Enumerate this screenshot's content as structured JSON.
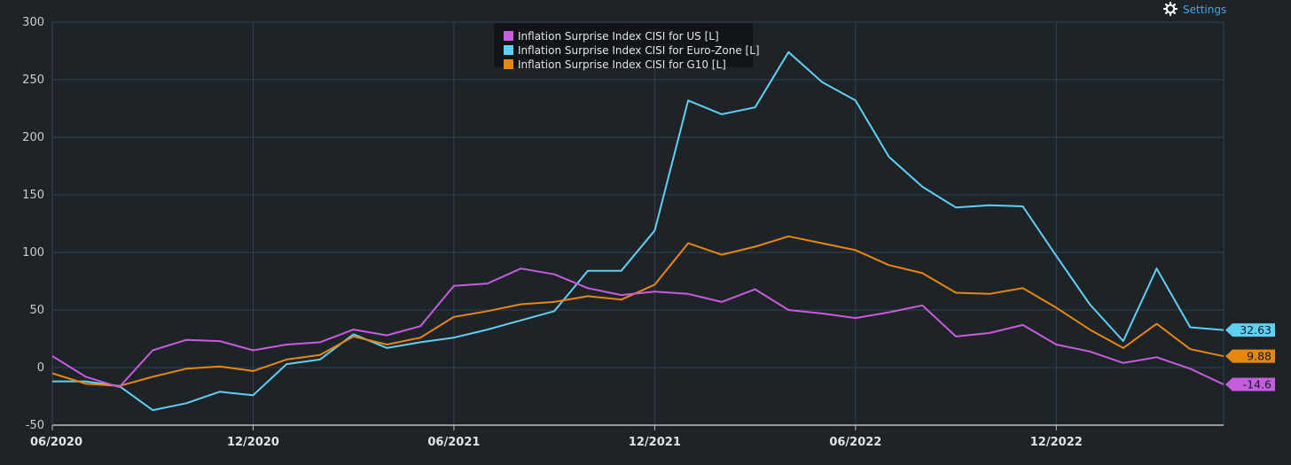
{
  "toolbar": {
    "settings_label": "Settings",
    "settings_icon": "gear-icon",
    "settings_color": "#3fa8e6"
  },
  "chart_data": {
    "type": "line",
    "title": "",
    "xlabel": "",
    "ylabel": "",
    "ylim": [
      -50,
      300
    ],
    "yticks": [
      300,
      250,
      200,
      150,
      100,
      50,
      0,
      -50
    ],
    "xticks": [
      {
        "label": "06/2020",
        "index": 0
      },
      {
        "label": "12/2020",
        "index": 6
      },
      {
        "label": "06/2021",
        "index": 12
      },
      {
        "label": "12/2021",
        "index": 18
      },
      {
        "label": "06/2022",
        "index": 24
      },
      {
        "label": "12/2022",
        "index": 30
      }
    ],
    "x": [
      "06/2020",
      "07/2020",
      "08/2020",
      "09/2020",
      "10/2020",
      "11/2020",
      "12/2020",
      "01/2021",
      "02/2021",
      "03/2021",
      "04/2021",
      "05/2021",
      "06/2021",
      "07/2021",
      "08/2021",
      "09/2021",
      "10/2021",
      "11/2021",
      "12/2021",
      "01/2022",
      "02/2022",
      "03/2022",
      "04/2022",
      "05/2022",
      "06/2022",
      "07/2022",
      "08/2022",
      "09/2022",
      "10/2022",
      "11/2022",
      "12/2022",
      "01/2023",
      "02/2023",
      "03/2023",
      "04/2023",
      "05/2023"
    ],
    "grid": true,
    "legend_position": "top-center",
    "series": [
      {
        "name": "Inflation Surprise Index CISI for US [L]",
        "color": "#c65ddd",
        "end_label": "-14.6",
        "values": [
          10,
          -8,
          -17,
          15,
          24,
          23,
          15,
          20,
          22,
          33,
          28,
          36,
          71,
          73,
          86,
          81,
          69,
          63,
          66,
          64,
          57,
          68,
          50,
          47,
          43,
          48,
          54,
          27,
          30,
          37,
          20,
          14,
          4,
          9,
          -1,
          -14.6
        ]
      },
      {
        "name": "Inflation Surprise Index CISI for Euro-Zone [L]",
        "color": "#5fd0f2",
        "end_label": "32.63",
        "values": [
          -12,
          -12,
          -16,
          -37,
          -31,
          -21,
          -24,
          3,
          7,
          29,
          17,
          22,
          26,
          33,
          41,
          49,
          84,
          84,
          119,
          232,
          220,
          226,
          274,
          248,
          232,
          183,
          157,
          139,
          141,
          140,
          97,
          55,
          23,
          86,
          35,
          32.63
        ]
      },
      {
        "name": "Inflation Surprise Index CISI for G10 [L]",
        "color": "#e8870e",
        "end_label": "9.88",
        "values": [
          -5,
          -14,
          -16,
          -8,
          -1,
          1,
          -3,
          7,
          11,
          27,
          20,
          26,
          44,
          49,
          55,
          57,
          62,
          59,
          72,
          108,
          98,
          105,
          114,
          108,
          102,
          89,
          82,
          65,
          64,
          69,
          52,
          33,
          17,
          38,
          16,
          9.88
        ]
      }
    ]
  }
}
